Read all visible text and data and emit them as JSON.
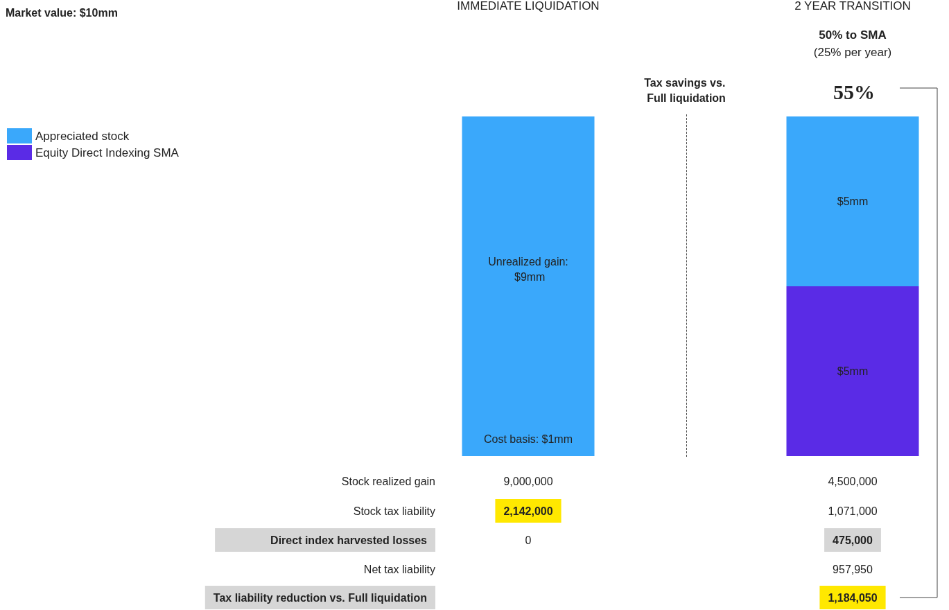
{
  "chart_data": {
    "type": "bar",
    "stacked": true,
    "title": "Market value: $10mm",
    "categories": [
      "IMMEDIATE LIQUIDATION",
      "2 YEAR TRANSITION"
    ],
    "legend": "top left",
    "series": [
      {
        "color": "#3aa8fb",
        "values": [
          1,
          null
        ],
        "value_labels": [
          "Cost basis: $1mm",
          null
        ]
      },
      {
        "name": "Equity Direct Indexing SMA",
        "color": "#5a2be6",
        "values": [
          null,
          5
        ],
        "value_labels": [
          null,
          "$5mm"
        ]
      },
      {
        "name": "Appreciated stock",
        "color": "#3aa8fb",
        "values": [
          9,
          5
        ],
        "value_labels": [
          "Unrealized gain: $9mm",
          "$5mm"
        ]
      }
    ],
    "annotations": [
      "50% to SMA",
      "(25% per year)",
      "Tax savings vs. Full liquidation",
      "55%",
      "Stock realized gain",
      "9,000,000",
      "4,500,000",
      "Stock tax liability",
      "2,142,000",
      "1,071,000",
      "Direct index harvested losses",
      "0",
      "475,000",
      "Net tax liability",
      "957,950",
      "Tax liability reduction vs. Full liquidation",
      "1,184,050"
    ]
  }
}
